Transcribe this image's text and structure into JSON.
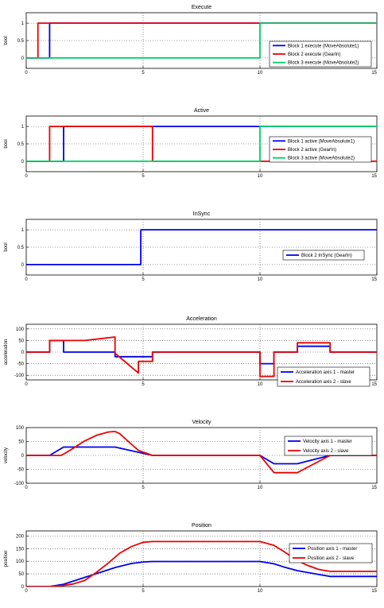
{
  "chart_data": [
    {
      "type": "line",
      "title": "Execute",
      "ylabel": "bool",
      "xlim": [
        0,
        15
      ],
      "ylim": [
        -0.3,
        1.3
      ],
      "xticks": [
        0,
        5,
        10,
        15
      ],
      "xtick_labels": [
        "0",
        "5",
        "10",
        "15"
      ],
      "yticks": [
        0,
        0.5,
        1
      ],
      "ytick_labels": [
        "0",
        "0.5",
        "1"
      ],
      "grid": true,
      "legend_position": "right",
      "series": [
        {
          "name": "Block 1 execute (MoveAbsolute1)",
          "color": "#0000ee",
          "x": [
            0,
            1,
            1,
            15
          ],
          "y": [
            0,
            0,
            1,
            1
          ]
        },
        {
          "name": "Block 2 execute (GearIn)",
          "color": "#ee0000",
          "x": [
            0,
            0.5,
            0.5,
            15
          ],
          "y": [
            0,
            0,
            1,
            1
          ]
        },
        {
          "name": "Block 3 execute (MoveAbsolute2)",
          "color": "#00cc66",
          "x": [
            0,
            10,
            10,
            15
          ],
          "y": [
            0,
            0,
            1,
            1
          ]
        }
      ]
    },
    {
      "type": "line",
      "title": "Active",
      "ylabel": "bool",
      "xlim": [
        0,
        15
      ],
      "ylim": [
        -0.3,
        1.3
      ],
      "xticks": [
        0,
        5,
        10,
        15
      ],
      "xtick_labels": [
        "0",
        "5",
        "10",
        "15"
      ],
      "yticks": [
        0,
        0.5,
        1
      ],
      "ytick_labels": [
        "0",
        "0.5",
        "1"
      ],
      "grid": true,
      "legend_position": "right",
      "series": [
        {
          "name": "Block 1 active (MoveAbsolute1)",
          "color": "#0000ee",
          "x": [
            0,
            1.6,
            1.6,
            15
          ],
          "y": [
            0,
            0,
            1,
            1
          ]
        },
        {
          "name": "Block 2 active (GearIn)",
          "color": "#ee0000",
          "x": [
            0,
            1.0,
            1.0,
            5.4,
            5.4,
            15
          ],
          "y": [
            0,
            0,
            1,
            1,
            0,
            0
          ]
        },
        {
          "name": "Block 3 active (MoveAbsolute2)",
          "color": "#00cc66",
          "x": [
            0,
            10,
            10,
            15
          ],
          "y": [
            0,
            0,
            1,
            1
          ]
        }
      ]
    },
    {
      "type": "line",
      "title": "InSync",
      "ylabel": "bool",
      "xlim": [
        0,
        15
      ],
      "ylim": [
        -0.3,
        1.3
      ],
      "xticks": [
        0,
        5,
        10,
        15
      ],
      "xtick_labels": [
        "0",
        "5",
        "10",
        "15"
      ],
      "yticks": [
        0,
        0.5,
        1
      ],
      "ytick_labels": [
        "0",
        "0.5",
        "1"
      ],
      "grid": true,
      "legend_position": "right",
      "series": [
        {
          "name": "Block 2 InSync (GearIn)",
          "color": "#0000ee",
          "x": [
            0,
            4.9,
            4.9,
            15
          ],
          "y": [
            0,
            0,
            1,
            1
          ]
        }
      ]
    },
    {
      "type": "line",
      "title": "Acceleration",
      "ylabel": "acceleration",
      "xlim": [
        0,
        15
      ],
      "ylim": [
        -120,
        120
      ],
      "xticks": [
        0,
        5,
        10,
        15
      ],
      "xtick_labels": [
        "0",
        "5",
        "10",
        "15"
      ],
      "yticks": [
        -100,
        -50,
        0,
        50,
        100
      ],
      "ytick_labels": [
        "-100",
        "-50",
        "0",
        "50",
        "100"
      ],
      "grid": true,
      "legend_position": "lower-right",
      "series": [
        {
          "name": "Acceleration axis 1 - master",
          "color": "#0000ee",
          "x": [
            0,
            1.0,
            1.0,
            1.6,
            1.6,
            3.8,
            3.8,
            5.4,
            5.4,
            10.0,
            10.0,
            10.6,
            10.6,
            11.6,
            11.6,
            13.0,
            13.0,
            15
          ],
          "y": [
            0,
            0,
            50,
            50,
            0,
            0,
            -20,
            -20,
            0,
            0,
            -50,
            -50,
            0,
            0,
            25,
            25,
            0,
            0
          ]
        },
        {
          "name": "Acceleration axis 2 - slave",
          "color": "#ee0000",
          "x": [
            0,
            1.0,
            1.0,
            2.5,
            3.8,
            3.8,
            4.8,
            4.8,
            5.4,
            5.4,
            10.0,
            10.0,
            10.6,
            10.6,
            11.6,
            11.6,
            13.0,
            13.0,
            15
          ],
          "y": [
            0,
            0,
            50,
            50,
            65,
            -5,
            -90,
            -40,
            -40,
            0,
            0,
            -105,
            -105,
            0,
            0,
            40,
            40,
            0,
            0
          ]
        }
      ]
    },
    {
      "type": "line",
      "title": "Velocity",
      "ylabel": "velocity",
      "xlim": [
        0,
        15
      ],
      "ylim": [
        -100,
        100
      ],
      "xticks": [
        0,
        5,
        10,
        15
      ],
      "xtick_labels": [
        "0",
        "5",
        "10",
        "15"
      ],
      "yticks": [
        -100,
        -50,
        0,
        50,
        100
      ],
      "ytick_labels": [
        "-100",
        "-50",
        "0",
        "50",
        "100"
      ],
      "grid": true,
      "legend_position": "right",
      "series": [
        {
          "name": "Velocity axis 1 - master",
          "color": "#0000ee",
          "x": [
            0,
            1.0,
            1.6,
            3.8,
            5.4,
            10.0,
            10.6,
            11.6,
            13.0,
            15
          ],
          "y": [
            0,
            0,
            30,
            30,
            0,
            0,
            -30,
            -30,
            0,
            0
          ]
        },
        {
          "name": "Velocity axis 2 - slave",
          "color": "#ee0000",
          "x": [
            0,
            1.5,
            2.0,
            2.5,
            3.0,
            3.5,
            3.8,
            4.0,
            4.5,
            4.8,
            5.4,
            10.0,
            10.6,
            11.6,
            13.0,
            15
          ],
          "y": [
            0,
            0,
            25,
            52,
            72,
            84,
            86,
            78,
            40,
            18,
            0,
            0,
            -62,
            -62,
            0,
            0
          ]
        }
      ]
    },
    {
      "type": "line",
      "title": "Position",
      "ylabel": "position",
      "xlim": [
        0,
        15
      ],
      "ylim": [
        0,
        220
      ],
      "xticks": [
        0,
        5,
        10,
        15
      ],
      "xtick_labels": [
        "0",
        "5",
        "10",
        "15"
      ],
      "yticks": [
        0,
        50,
        100,
        150,
        200
      ],
      "ytick_labels": [
        "0",
        "50",
        "100",
        "150",
        "200"
      ],
      "grid": true,
      "legend_position": "top-right",
      "series": [
        {
          "name": "Position axis 1 - master",
          "color": "#0000ee",
          "x": [
            0,
            1.0,
            1.6,
            2.5,
            3.0,
            3.8,
            4.5,
            5.0,
            5.4,
            10.0,
            10.6,
            11.0,
            11.6,
            12.5,
            13.0,
            15
          ],
          "y": [
            0,
            0,
            9,
            36,
            51,
            75,
            91,
            97,
            99,
            99,
            90,
            78,
            63,
            48,
            40,
            40
          ]
        },
        {
          "name": "Position axis 2 - slave",
          "color": "#ee0000",
          "x": [
            0,
            1.0,
            1.5,
            2.0,
            2.5,
            3.0,
            3.5,
            4.0,
            4.5,
            5.0,
            5.4,
            10.0,
            10.6,
            11.0,
            11.6,
            12.0,
            12.5,
            13.0,
            15
          ],
          "y": [
            0,
            0,
            3,
            10,
            24,
            56,
            92,
            132,
            158,
            175,
            178,
            178,
            163,
            140,
            103,
            85,
            68,
            60,
            60
          ]
        }
      ]
    }
  ]
}
